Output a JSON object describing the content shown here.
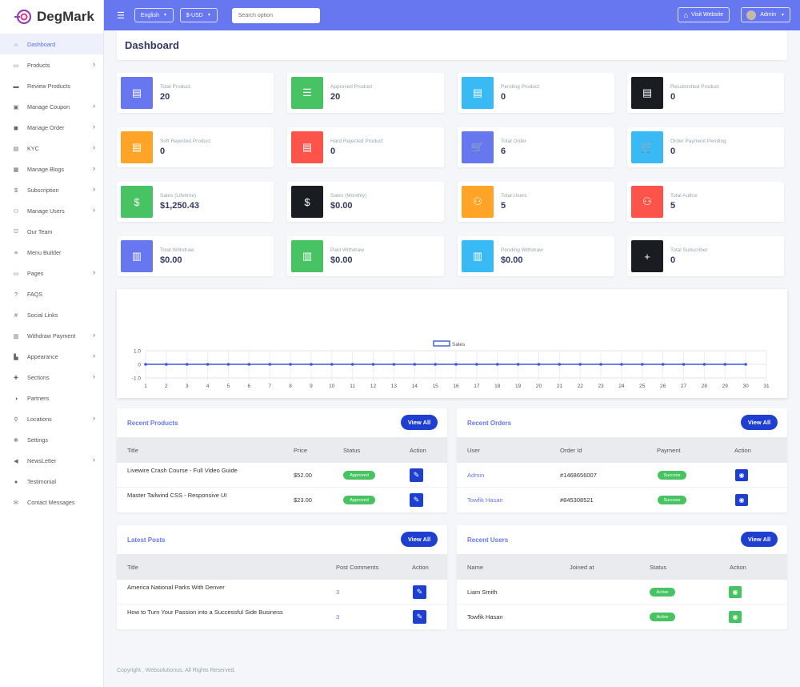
{
  "brand": {
    "name": "DegMark"
  },
  "sidebar": {
    "items": [
      {
        "label": "Dashboard",
        "icon": "home-icon",
        "chevron": false,
        "active": true
      },
      {
        "label": "Products",
        "icon": "box-icon",
        "chevron": true
      },
      {
        "label": "Review Products",
        "icon": "review-icon",
        "chevron": false
      },
      {
        "label": "Manage Coupon",
        "icon": "coupon-icon",
        "chevron": true
      },
      {
        "label": "Manage Order",
        "icon": "bag-icon",
        "chevron": true
      },
      {
        "label": "KYC",
        "icon": "id-card-icon",
        "chevron": true
      },
      {
        "label": "Manage Blogs",
        "icon": "blog-icon",
        "chevron": true
      },
      {
        "label": "Subscription",
        "icon": "dollar-icon",
        "chevron": true
      },
      {
        "label": "Manage Users",
        "icon": "users-icon",
        "chevron": true
      },
      {
        "label": "Our Team",
        "icon": "team-icon",
        "chevron": false
      },
      {
        "label": "Menu Builder",
        "icon": "menu-icon",
        "chevron": false
      },
      {
        "label": "Pages",
        "icon": "pages-icon",
        "chevron": true
      },
      {
        "label": "FAQS",
        "icon": "question-icon",
        "chevron": false
      },
      {
        "label": "Social Links",
        "icon": "hash-icon",
        "chevron": false
      },
      {
        "label": "Withdraw Payment",
        "icon": "money-icon",
        "chevron": true
      },
      {
        "label": "Appearance",
        "icon": "chart-icon",
        "chevron": true
      },
      {
        "label": "Sections",
        "icon": "puzzle-icon",
        "chevron": true
      },
      {
        "label": "Partners",
        "icon": "partner-icon",
        "chevron": false
      },
      {
        "label": "Locations",
        "icon": "location-icon",
        "chevron": true
      },
      {
        "label": "Settings",
        "icon": "gear-icon",
        "chevron": false
      },
      {
        "label": "NewsLetter",
        "icon": "megaphone-icon",
        "chevron": true
      },
      {
        "label": "Testimonial",
        "icon": "comment-icon",
        "chevron": false
      },
      {
        "label": "Contact Messages",
        "icon": "envelope-icon",
        "chevron": false
      }
    ]
  },
  "topbar": {
    "language": "English",
    "currency": "$-USD",
    "search_placeholder": "Search option",
    "visit_website": "Visit Website",
    "admin": "Admin"
  },
  "page": {
    "title": "Dashboard"
  },
  "cards": [
    {
      "label": "Total Product",
      "value": "20",
      "color": "#6777ef",
      "icon": "list-box-icon"
    },
    {
      "label": "Approved Product",
      "value": "20",
      "color": "#47c363",
      "icon": "list-icon"
    },
    {
      "label": "Pending Product",
      "value": "0",
      "color": "#3abaf4",
      "icon": "list-box-icon"
    },
    {
      "label": "Resubmitted Product",
      "value": "0",
      "color": "#191d21",
      "icon": "list-box-icon"
    },
    {
      "label": "Soft Rejected Product",
      "value": "0",
      "color": "#ffa426",
      "icon": "list-box-icon"
    },
    {
      "label": "Hard Rejected Product",
      "value": "0",
      "color": "#fc544b",
      "icon": "list-box-icon"
    },
    {
      "label": "Total Order",
      "value": "6",
      "color": "#6777ef",
      "icon": "cart-icon"
    },
    {
      "label": "Order Payment Pending",
      "value": "0",
      "color": "#3abaf4",
      "icon": "cart-icon"
    },
    {
      "label": "Sales (Lifetime)",
      "value": "$1,250.43",
      "color": "#47c363",
      "icon": "dollar-icon"
    },
    {
      "label": "Sales (Monthly)",
      "value": "$0.00",
      "color": "#191d21",
      "icon": "dollar-icon"
    },
    {
      "label": "Total Users",
      "value": "5",
      "color": "#ffa426",
      "icon": "users-icon"
    },
    {
      "label": "Total Author",
      "value": "5",
      "color": "#fc544b",
      "icon": "users-icon"
    },
    {
      "label": "Total Withdraw",
      "value": "$0.00",
      "color": "#6777ef",
      "icon": "money-icon"
    },
    {
      "label": "Paid Withdraw",
      "value": "$0.00",
      "color": "#47c363",
      "icon": "money-icon"
    },
    {
      "label": "Pending Withdraw",
      "value": "$0.00",
      "color": "#3abaf4",
      "icon": "money-icon"
    },
    {
      "label": "Total Subscriber",
      "value": "0",
      "color": "#191d21",
      "icon": "user-plus-icon"
    }
  ],
  "chart_data": {
    "type": "line",
    "series": [
      {
        "name": "Sales",
        "values": [
          0,
          0,
          0,
          0,
          0,
          0,
          0,
          0,
          0,
          0,
          0,
          0,
          0,
          0,
          0,
          0,
          0,
          0,
          0,
          0,
          0,
          0,
          0,
          0,
          0,
          0,
          0,
          0,
          0,
          0
        ]
      }
    ],
    "x": [
      1,
      2,
      3,
      4,
      5,
      6,
      7,
      8,
      9,
      10,
      11,
      12,
      13,
      14,
      15,
      16,
      17,
      18,
      19,
      20,
      21,
      22,
      23,
      24,
      25,
      26,
      27,
      28,
      29,
      30
    ],
    "x_ticks": [
      "1",
      "2",
      "3",
      "4",
      "5",
      "6",
      "7",
      "8",
      "9",
      "10",
      "11",
      "12",
      "13",
      "14",
      "15",
      "16",
      "17",
      "18",
      "19",
      "20",
      "21",
      "22",
      "23",
      "24",
      "25",
      "26",
      "27",
      "28",
      "29",
      "30",
      "31"
    ],
    "y_ticks": [
      "1.0",
      "0",
      "-1.0"
    ],
    "ylim": [
      -1,
      1
    ],
    "legend": "top-center",
    "grid": true,
    "color": "#3b5bdb"
  },
  "recent_products": {
    "title": "Recent Products",
    "view_all": "View All",
    "headers": [
      "Title",
      "Price",
      "Status",
      "Action"
    ],
    "rows": [
      {
        "title": "Livewire Crash Course - Full Video Guide",
        "price": "$52.00",
        "status": "Approved"
      },
      {
        "title": "Master Tailwind CSS - Responsive UI",
        "price": "$23.00",
        "status": "Approved"
      }
    ]
  },
  "recent_orders": {
    "title": "Recent Orders",
    "view_all": "View All",
    "headers": [
      "User",
      "Order Id",
      "Payment",
      "Action"
    ],
    "rows": [
      {
        "user": "Admin",
        "order_id": "#1468656007",
        "payment": "Success"
      },
      {
        "user": "Towfik Hasan",
        "order_id": "#845308521",
        "payment": "Success"
      }
    ]
  },
  "latest_posts": {
    "title": "Latest Posts",
    "view_all": "View All",
    "headers": [
      "Title",
      "Post Comments",
      "Action"
    ],
    "rows": [
      {
        "title": "America National Parks With Denver",
        "comments": "3"
      },
      {
        "title": "How to Turn Your Passion into a Successful Side Business",
        "comments": "3"
      }
    ]
  },
  "recent_users": {
    "title": "Recent Users",
    "view_all": "View All",
    "headers": [
      "Name",
      "Joined at",
      "Status",
      "Action"
    ],
    "rows": [
      {
        "name": "Liam Smith",
        "status": "Active"
      },
      {
        "name": "Towfik Hasan",
        "status": "Active"
      }
    ]
  },
  "footer": {
    "text": "Copyright , Websolutionus. All Rights Reserved."
  }
}
